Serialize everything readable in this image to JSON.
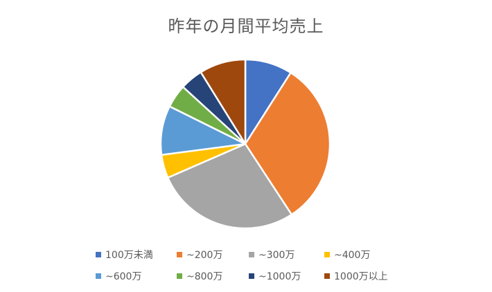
{
  "chart_data": {
    "type": "pie",
    "title": "昨年の月間平均売上",
    "categories": [
      "100万未満",
      "~200万",
      "~300万",
      "~400万",
      "~600万",
      "~800万",
      "~1000万",
      "1000万以上"
    ],
    "values": [
      9.1,
      32.0,
      27.9,
      4.5,
      9.5,
      4.5,
      4.4,
      8.9
    ],
    "colors": [
      "#4472C4",
      "#ED7D31",
      "#A5A5A5",
      "#FFC000",
      "#5B9BD5",
      "#70AD47",
      "#264478",
      "#9E480E"
    ],
    "start_angle": "12 o'clock",
    "direction": "clockwise",
    "legend_position": "bottom"
  }
}
